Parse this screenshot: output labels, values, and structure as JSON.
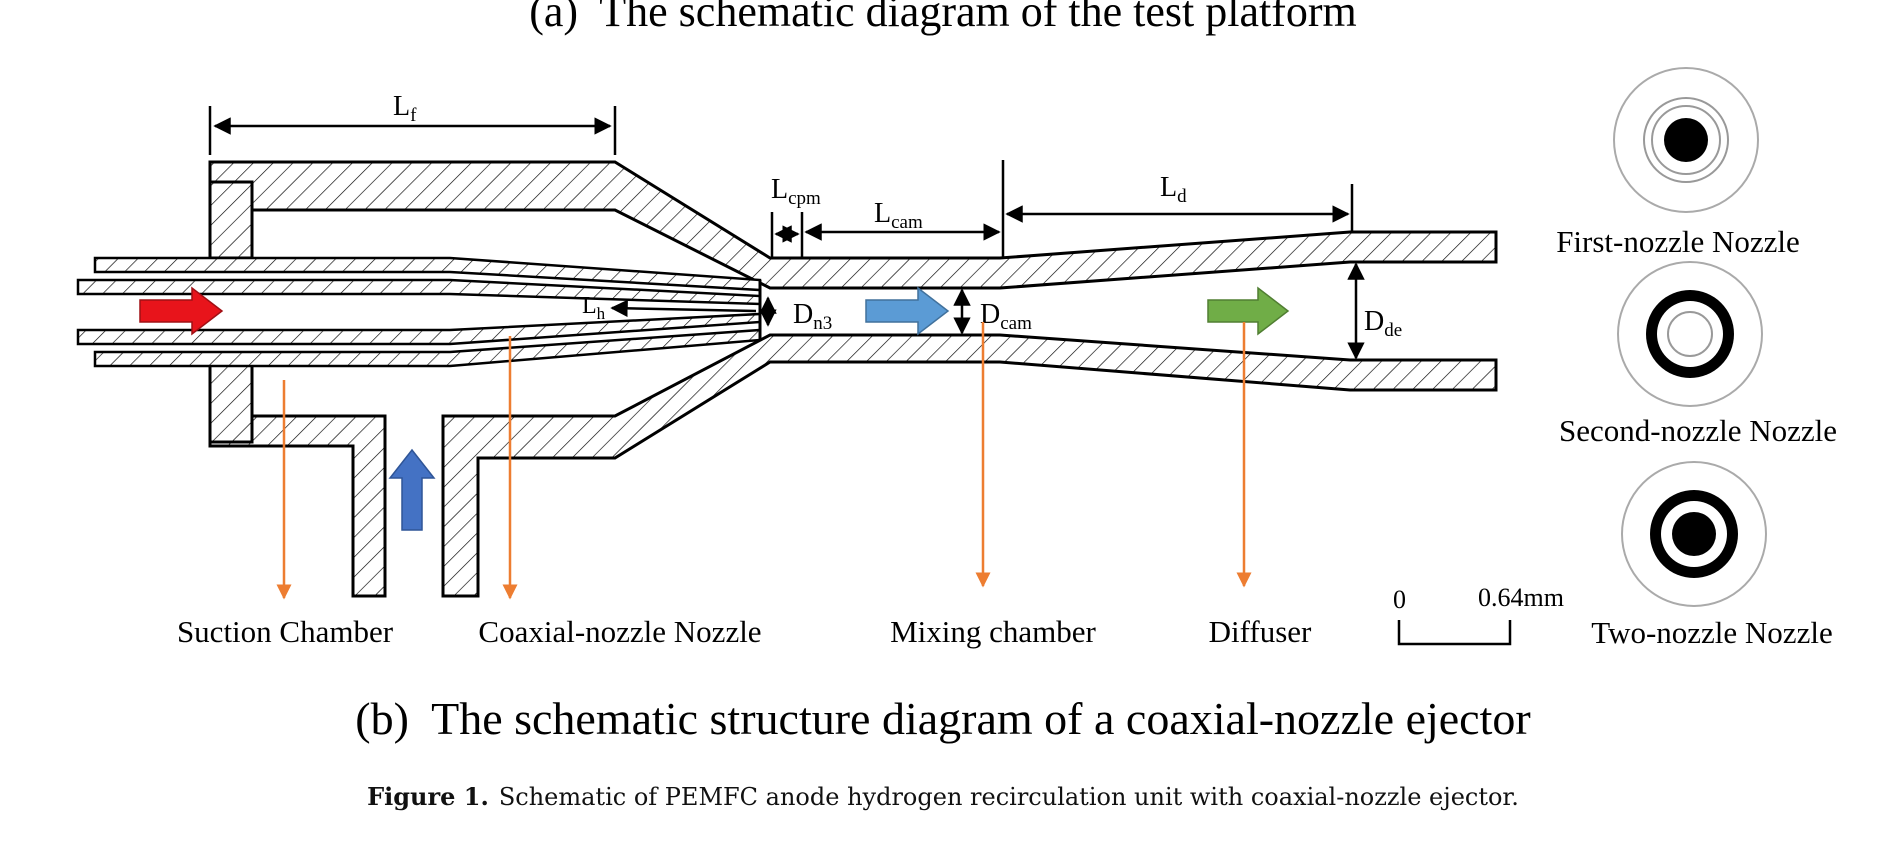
{
  "captions": {
    "a": "(a)  The schematic diagram of the test platform",
    "b": "(b)  The schematic structure diagram of a coaxial-nozzle ejector",
    "figure_label": "Figure 1.",
    "figure_text": "Schematic of PEMFC anode hydrogen recirculation unit with coaxial-nozzle ejector."
  },
  "dimensions": {
    "lf": {
      "main": "L",
      "sub": "f"
    },
    "lcpm": {
      "main": "L",
      "sub": "cpm"
    },
    "lcam": {
      "main": "L",
      "sub": "cam"
    },
    "ld": {
      "main": "L",
      "sub": "d"
    },
    "lh": {
      "main": "L",
      "sub": "h"
    },
    "dn3": {
      "main": "D",
      "sub": "n3"
    },
    "dcam": {
      "main": "D",
      "sub": "cam"
    },
    "dde": {
      "main": "D",
      "sub": "de"
    }
  },
  "part_labels": {
    "suction": "Suction Chamber",
    "coaxial": "Coaxial-nozzle Nozzle",
    "mixing": "Mixing chamber",
    "diffuser": "Diffuser"
  },
  "nozzle_types": {
    "first": "First-nozzle Nozzle",
    "second": "Second-nozzle Nozzle",
    "two": "Two-nozzle Nozzle"
  },
  "scale_bar": {
    "zero": "0",
    "value": "0.64mm"
  },
  "colors": {
    "primary_flow": "#e8141b",
    "secondary_flow": "#4472c4",
    "mixing_flow": "#5b9bd5",
    "diffuser_flow": "#70ad47",
    "leader": "#ed7d31"
  }
}
